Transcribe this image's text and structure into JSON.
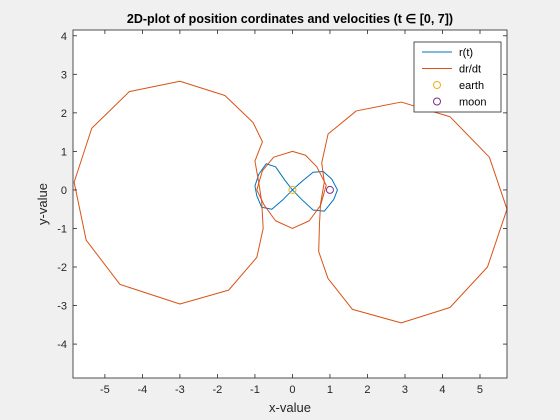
{
  "chart_data": {
    "type": "line",
    "title": "2D-plot of position cordinates and velocities (t ∈ [0, 7])",
    "xlabel": "x-value",
    "ylabel": "y-value",
    "xlim": [
      -5.85,
      5.72
    ],
    "ylim": [
      -4.88,
      4.15
    ],
    "xticks": [
      -5,
      -4,
      -3,
      -2,
      -1,
      0,
      1,
      2,
      3,
      4,
      5
    ],
    "yticks": [
      -4,
      -3,
      -2,
      -1,
      0,
      1,
      2,
      3,
      4
    ],
    "grid": false,
    "legend_position": "top-right",
    "series": [
      {
        "name": "r(t)",
        "kind": "line",
        "color": "#0072BD",
        "points": [
          [
            0.0,
            0.0
          ],
          [
            -0.25,
            -0.25
          ],
          [
            -0.55,
            -0.5
          ],
          [
            -0.82,
            -0.45
          ],
          [
            -0.95,
            -0.15
          ],
          [
            -1.0,
            0.1
          ],
          [
            -0.9,
            0.4
          ],
          [
            -0.7,
            0.68
          ],
          [
            -0.45,
            0.6
          ],
          [
            -0.2,
            0.25
          ],
          [
            0.0,
            0.0
          ],
          [
            0.25,
            -0.25
          ],
          [
            0.55,
            -0.52
          ],
          [
            0.85,
            -0.55
          ],
          [
            1.1,
            -0.25
          ],
          [
            1.2,
            0.0
          ],
          [
            1.05,
            0.28
          ],
          [
            0.82,
            0.48
          ],
          [
            0.55,
            0.46
          ],
          [
            0.25,
            0.22
          ],
          [
            0.0,
            0.0
          ]
        ]
      },
      {
        "name": "dr/dt",
        "kind": "line",
        "color": "#D95319",
        "points": [
          [
            0.0,
            1.0
          ],
          [
            0.35,
            0.9
          ],
          [
            0.65,
            0.6
          ],
          [
            0.9,
            0.12
          ],
          [
            0.75,
            -0.4
          ],
          [
            0.45,
            -0.8
          ],
          [
            0.0,
            -1.0
          ],
          [
            -0.45,
            -0.8
          ],
          [
            -0.75,
            -0.4
          ],
          [
            -0.95,
            0.0
          ],
          [
            -0.8,
            0.5
          ],
          [
            -0.5,
            0.85
          ],
          [
            0.0,
            1.0
          ]
        ]
      },
      {
        "name": "dr/dt",
        "kind": "line",
        "color": "#D95319",
        "points": [
          [
            -1.0,
            0.75
          ],
          [
            -0.8,
            1.25
          ],
          [
            -1.05,
            1.75
          ],
          [
            -1.8,
            2.45
          ],
          [
            -3.0,
            2.82
          ],
          [
            -4.35,
            2.55
          ],
          [
            -5.35,
            1.6
          ],
          [
            -5.82,
            0.2
          ],
          [
            -5.5,
            -1.3
          ],
          [
            -4.6,
            -2.45
          ],
          [
            -3.0,
            -2.96
          ],
          [
            -1.7,
            -2.6
          ],
          [
            -0.95,
            -1.75
          ],
          [
            -0.78,
            -1.0
          ],
          [
            -0.82,
            -0.3
          ],
          [
            -0.9,
            0.2
          ],
          [
            -1.0,
            0.75
          ]
        ]
      },
      {
        "name": "dr/dt",
        "kind": "line",
        "color": "#D95319",
        "points": [
          [
            0.85,
            0.2
          ],
          [
            0.78,
            0.7
          ],
          [
            0.95,
            1.45
          ],
          [
            1.7,
            2.05
          ],
          [
            2.9,
            2.28
          ],
          [
            4.2,
            1.9
          ],
          [
            5.25,
            0.85
          ],
          [
            5.72,
            -0.5
          ],
          [
            5.2,
            -2.0
          ],
          [
            4.2,
            -3.05
          ],
          [
            2.9,
            -3.45
          ],
          [
            1.6,
            -3.1
          ],
          [
            0.95,
            -2.3
          ],
          [
            0.7,
            -1.6
          ],
          [
            0.72,
            -0.9
          ],
          [
            0.75,
            -0.35
          ],
          [
            0.85,
            0.2
          ]
        ]
      },
      {
        "name": "earth",
        "kind": "marker",
        "color": "#EDB120",
        "points": [
          [
            0.0,
            0.0
          ]
        ]
      },
      {
        "name": "moon",
        "kind": "marker",
        "color": "#7E2F8E",
        "points": [
          [
            1.0,
            0.0
          ]
        ]
      }
    ],
    "legend": [
      {
        "label": "r(t)",
        "color": "#0072BD",
        "symbol": "line"
      },
      {
        "label": "dr/dt",
        "color": "#D95319",
        "symbol": "line"
      },
      {
        "label": "earth",
        "color": "#EDB120",
        "symbol": "circle"
      },
      {
        "label": "moon",
        "color": "#7E2F8E",
        "symbol": "circle"
      }
    ]
  }
}
